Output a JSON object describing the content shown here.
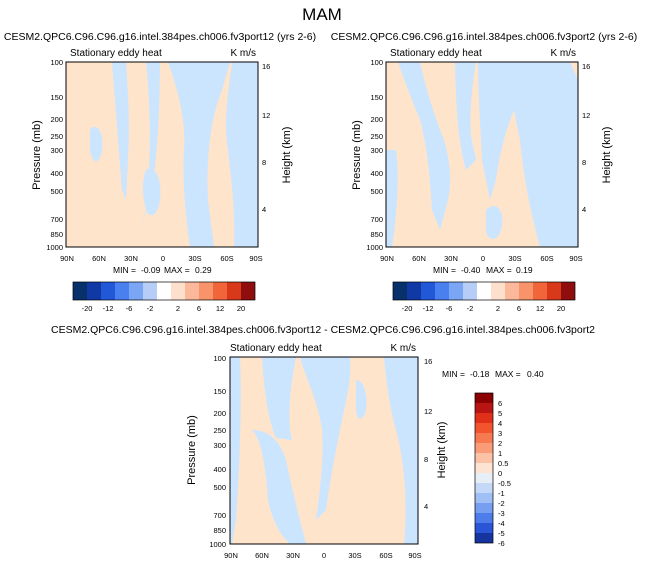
{
  "figure": {
    "title": "MAM"
  },
  "palette": {
    "warm": "#ffe4cc",
    "cool": "#cce5ff",
    "frame": "#000000"
  },
  "chart_data": [
    {
      "type": "contour",
      "title": "CESM2.QPC6.C96.C96.g16.intel.384pes.ch006.fv3port12 (yrs 2-6)",
      "subtitle_left": "Stationary eddy heat",
      "subtitle_right": "K m/s",
      "ylabel": "Pressure (mb)",
      "y2label": "Height (km)",
      "xticks": [
        "90N",
        "60N",
        "30N",
        "0",
        "30S",
        "60S",
        "90S"
      ],
      "yticks": [
        "100",
        "150",
        "200",
        "250",
        "300",
        "400",
        "500",
        "700",
        "850",
        "1000"
      ],
      "y2ticks": [
        "16",
        "12",
        "8",
        "4"
      ],
      "stats": {
        "min_label": "MIN =",
        "min": "-0.09",
        "max_label": "MAX =",
        "max": "0.29"
      },
      "colorbar": [
        "-20",
        "-12",
        "-6",
        "-2",
        "2",
        "6",
        "12",
        "20"
      ]
    },
    {
      "type": "contour",
      "title": "CESM2.QPC6.C96.C96.g16.intel.384pes.ch006.fv3port2 (yrs 2-6)",
      "subtitle_left": "Stationary eddy heat",
      "subtitle_right": "K m/s",
      "ylabel": "Pressure (mb)",
      "y2label": "Height (km)",
      "xticks": [
        "90N",
        "60N",
        "30N",
        "0",
        "30S",
        "60S",
        "90S"
      ],
      "yticks": [
        "100",
        "150",
        "200",
        "250",
        "300",
        "400",
        "500",
        "700",
        "850",
        "1000"
      ],
      "y2ticks": [
        "16",
        "12",
        "8",
        "4"
      ],
      "stats": {
        "min_label": "MIN =",
        "min": "-0.40",
        "max_label": "MAX =",
        "max": "0.19"
      },
      "colorbar": [
        "-20",
        "-12",
        "-6",
        "-2",
        "2",
        "6",
        "12",
        "20"
      ]
    },
    {
      "type": "contour",
      "title": "CESM2.QPC6.C96.C96.g16.intel.384pes.ch006.fv3port12 - CESM2.QPC6.C96.C96.g16.intel.384pes.ch006.fv3port2",
      "subtitle_left": "Stationary eddy heat",
      "subtitle_right": "K m/s",
      "ylabel": "Pressure (mb)",
      "y2label": "Height (km)",
      "xticks": [
        "90N",
        "60N",
        "30N",
        "0",
        "30S",
        "60S",
        "90S"
      ],
      "yticks": [
        "100",
        "150",
        "200",
        "250",
        "300",
        "400",
        "500",
        "700",
        "850",
        "1000"
      ],
      "y2ticks": [
        "16",
        "12",
        "8",
        "4"
      ],
      "stats": {
        "min_label": "MIN =",
        "min": "-0.18",
        "max_label": "MAX =",
        "max": "0.40"
      },
      "colorbar": [
        "6",
        "5",
        "4",
        "3",
        "2",
        "1",
        "0.5",
        "0",
        "-0.5",
        "-1",
        "-2",
        "-3",
        "-4",
        "-5",
        "-6"
      ]
    }
  ]
}
